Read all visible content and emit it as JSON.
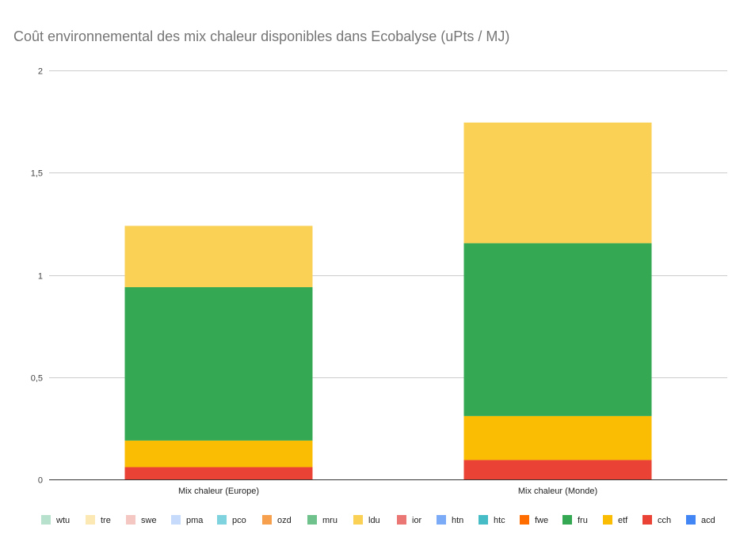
{
  "chart_data": {
    "type": "bar",
    "stacked": true,
    "title": "Coût environnemental des mix chaleur disponibles dans Ecobalyse (uPts / MJ)",
    "xlabel": "",
    "ylabel": "",
    "ylim": [
      0,
      2
    ],
    "yticks": [
      0,
      0.5,
      1,
      1.5,
      2
    ],
    "ytick_labels": [
      "0",
      "0,5",
      "1",
      "1,5",
      "2"
    ],
    "grid": true,
    "legend_position": "bottom",
    "categories": [
      "Mix chaleur (Europe)",
      "Mix chaleur (Monde)"
    ],
    "series": [
      {
        "name": "wtu",
        "color": "#b7e1cd",
        "values": [
          0,
          0
        ]
      },
      {
        "name": "tre",
        "color": "#fce8b2",
        "values": [
          0,
          0
        ]
      },
      {
        "name": "swe",
        "color": "#f4c7c3",
        "values": [
          0,
          0
        ]
      },
      {
        "name": "pma",
        "color": "#c6dafc",
        "values": [
          0,
          0
        ]
      },
      {
        "name": "pco",
        "color": "#7fd3df",
        "values": [
          0,
          0
        ]
      },
      {
        "name": "ozd",
        "color": "#f6a04d",
        "values": [
          0,
          0
        ]
      },
      {
        "name": "mru",
        "color": "#6fc28b",
        "values": [
          0,
          0
        ]
      },
      {
        "name": "ldu",
        "color": "#fad155",
        "values": [
          0.3,
          0.59
        ]
      },
      {
        "name": "ior",
        "color": "#ea7773",
        "values": [
          0,
          0
        ]
      },
      {
        "name": "htn",
        "color": "#7baaf7",
        "values": [
          0,
          0
        ]
      },
      {
        "name": "htc",
        "color": "#46bdc6",
        "values": [
          0,
          0
        ]
      },
      {
        "name": "fwe",
        "color": "#ff6d01",
        "values": [
          0,
          0
        ]
      },
      {
        "name": "fru",
        "color": "#34a853",
        "values": [
          0.75,
          0.845
        ]
      },
      {
        "name": "etf",
        "color": "#fbbc04",
        "values": [
          0.13,
          0.215
        ]
      },
      {
        "name": "cch",
        "color": "#ea4335",
        "values": [
          0.06,
          0.095
        ]
      },
      {
        "name": "acd",
        "color": "#4285f4",
        "values": [
          0,
          0
        ]
      }
    ],
    "stack_order": [
      "cch",
      "etf",
      "fru",
      "ldu"
    ]
  }
}
